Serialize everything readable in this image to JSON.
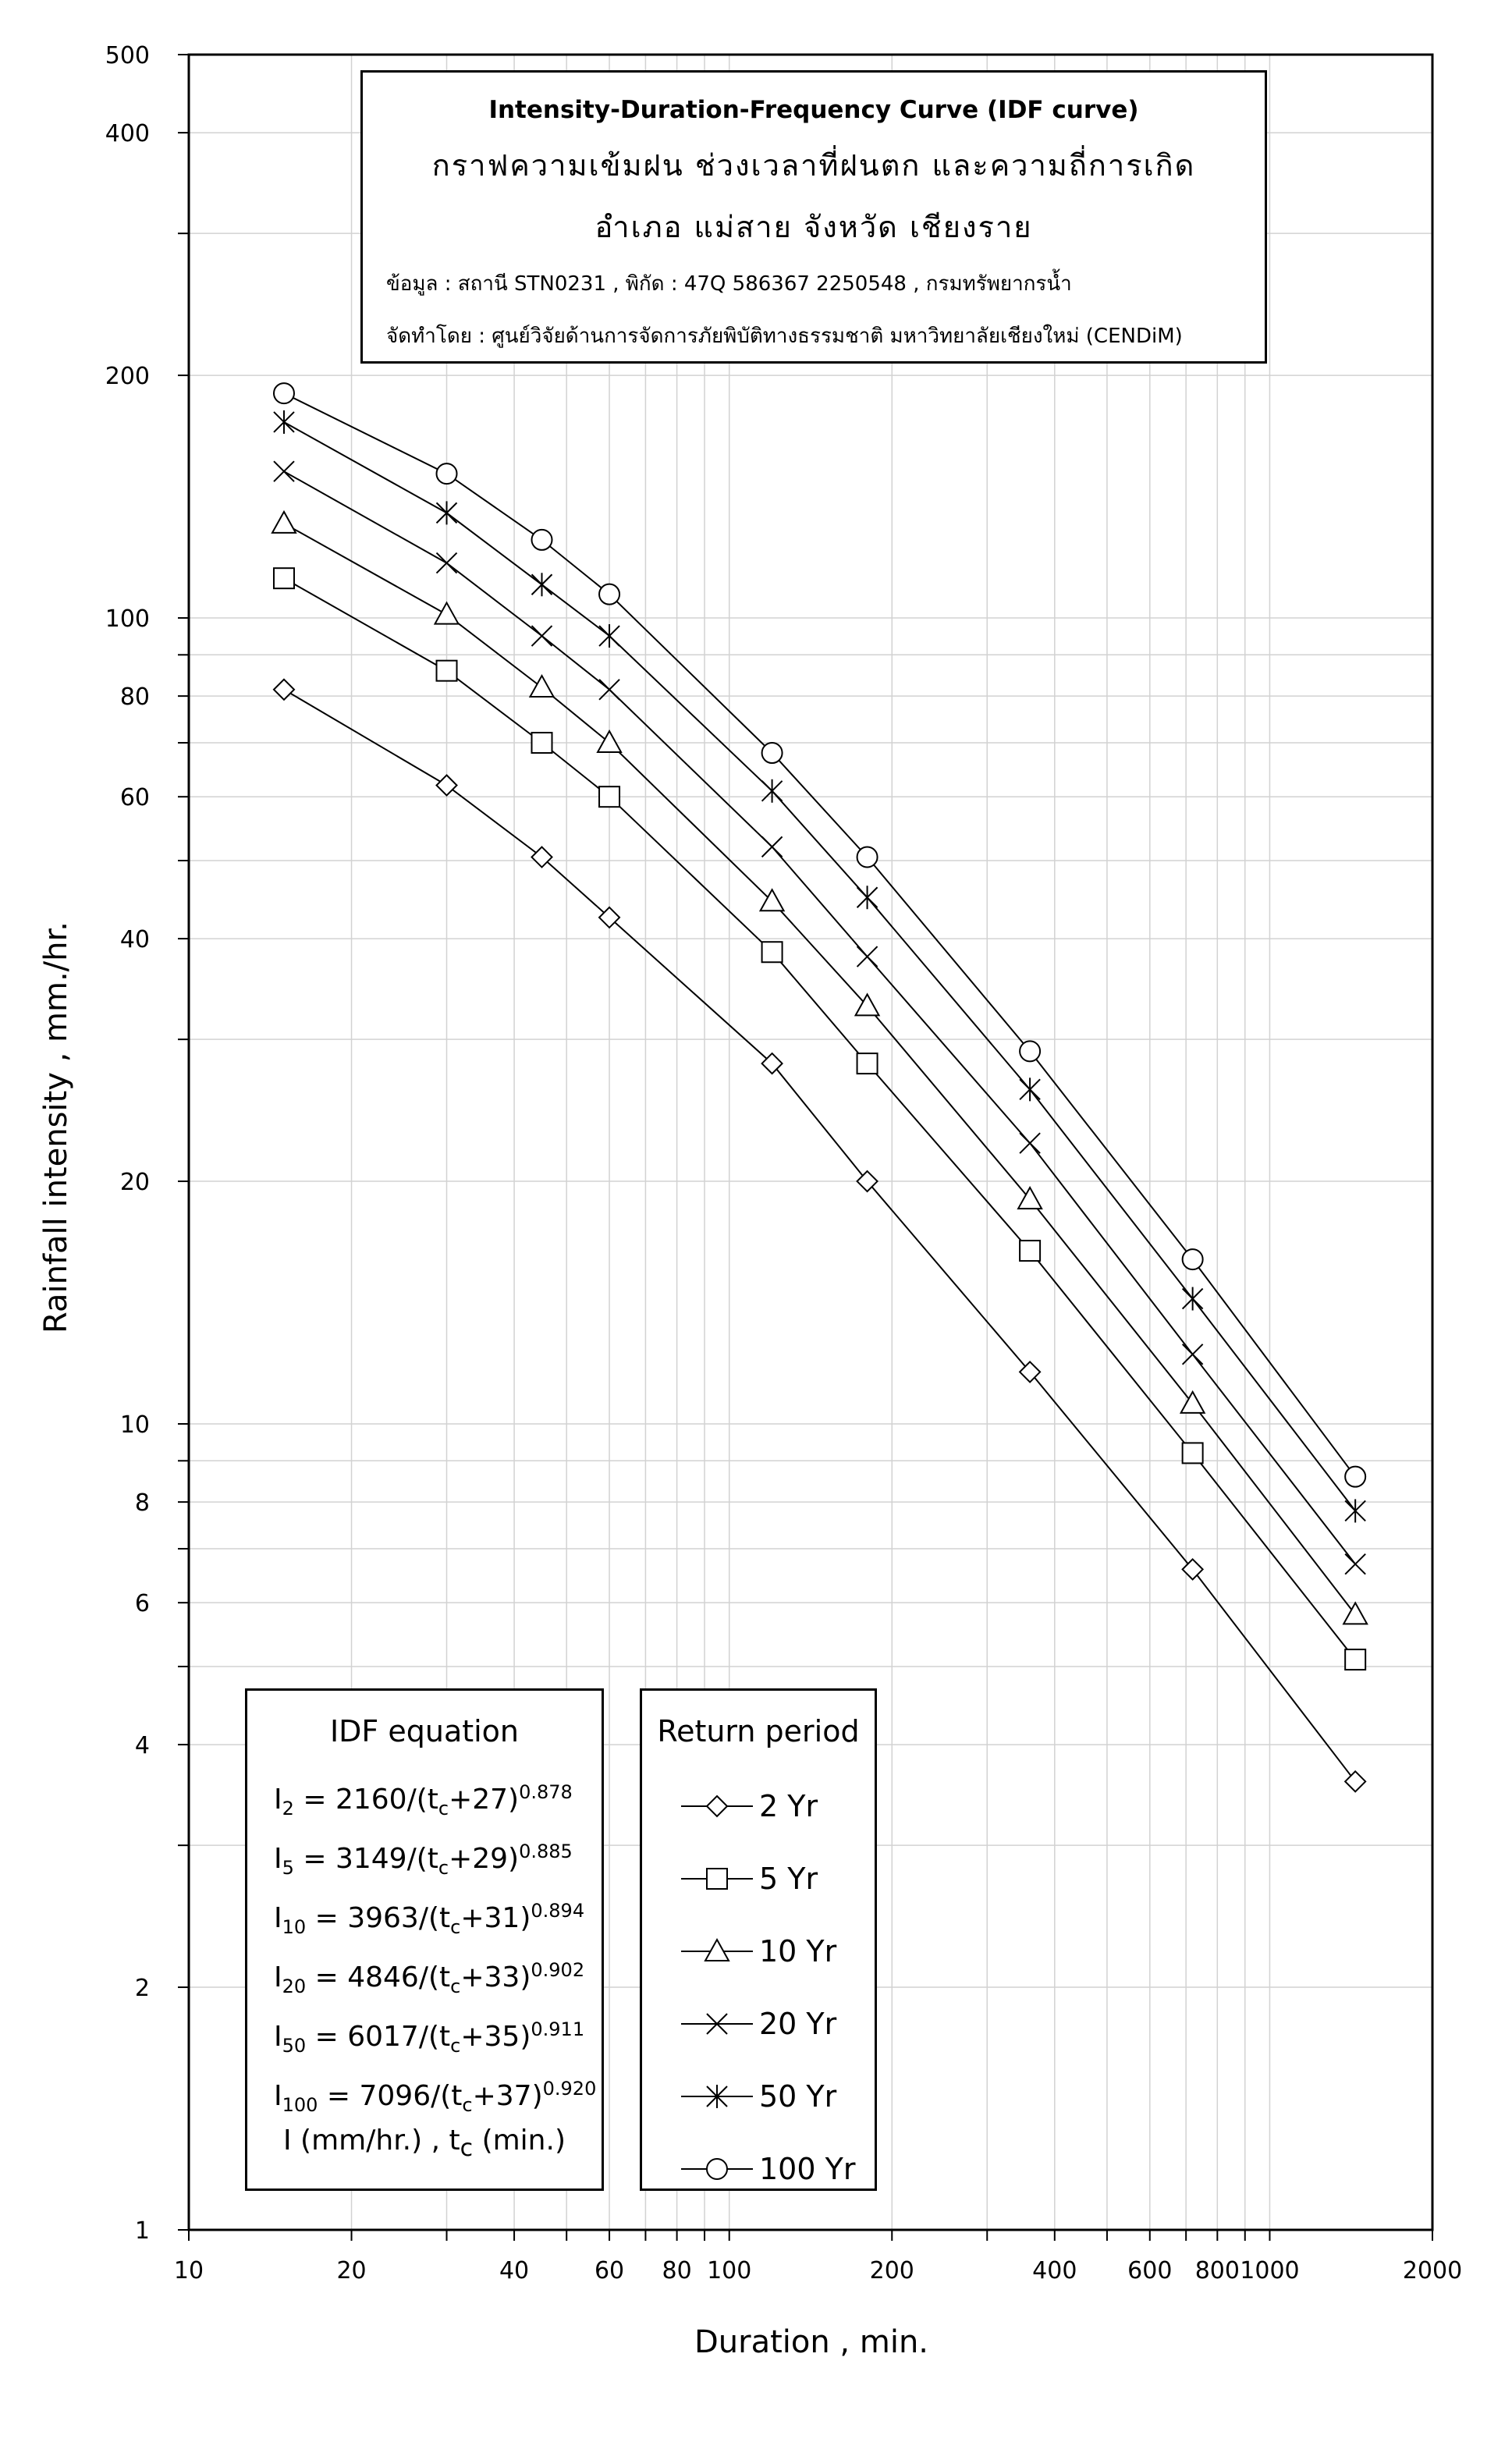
{
  "chart_data": {
    "type": "line",
    "title": "Intensity-Duration-Frequency Curve (IDF curve)",
    "subtitle_lines": [
      "กราฟความเข้มฝน ช่วงเวลาที่ฝนตก และความถี่การเกิด",
      "อำเภอ แม่สาย จังหวัด เชียงราย",
      "ข้อมูล : สถานี STN0231 , พิกัด : 47Q 586367 2250548 , กรมทรัพยากรน้ำ",
      "จัดทำโดย : ศูนย์วิจัยด้านการจัดการภัยพิบัติทางธรรมชาติ มหาวิทยาลัยเชียงใหม่ (CENDiM)"
    ],
    "xlabel": "Duration , min.",
    "ylabel": "Rainfall intensity , mm./hr.",
    "x_scale": "log",
    "y_scale": "log",
    "xlim": [
      10,
      2000
    ],
    "ylim": [
      1,
      500
    ],
    "grid": true,
    "x_tick_labels": [
      "10",
      "20",
      "40",
      "60",
      "80",
      "100",
      "200",
      "400",
      "600",
      "800",
      "1000",
      "2000"
    ],
    "y_tick_labels": [
      "1",
      "2",
      "4",
      "6",
      "8",
      "10",
      "20",
      "40",
      "60",
      "80",
      "100",
      "200",
      "400",
      "500"
    ],
    "x": [
      15,
      30,
      45,
      60,
      120,
      180,
      360,
      720,
      1440
    ],
    "series": [
      {
        "name": "2 Yr",
        "marker": "diamond",
        "values": [
          81.5,
          62,
          50.5,
          42.5,
          28,
          20,
          11.6,
          6.6,
          3.6
        ]
      },
      {
        "name": "5 Yr",
        "marker": "square",
        "values": [
          112,
          86,
          70,
          60,
          38.5,
          28,
          16.4,
          9.2,
          5.1
        ]
      },
      {
        "name": "10 Yr",
        "marker": "triangle",
        "values": [
          131,
          101,
          82,
          70,
          44.5,
          33,
          19,
          10.6,
          5.8
        ]
      },
      {
        "name": "20 Yr",
        "marker": "x",
        "values": [
          152,
          117,
          95,
          81.5,
          52,
          38,
          22.3,
          12.2,
          6.7
        ]
      },
      {
        "name": "50 Yr",
        "marker": "asterisk",
        "values": [
          175,
          135,
          110,
          95,
          61,
          45,
          26,
          14.3,
          7.8
        ]
      },
      {
        "name": "100 Yr",
        "marker": "circle",
        "values": [
          190,
          151,
          125,
          107,
          68,
          50.5,
          29,
          16,
          8.6
        ]
      }
    ],
    "legend_title": "Return period",
    "legend_position": "bottom-center"
  },
  "equation_box": {
    "title": "IDF equation",
    "lines": [
      {
        "sub": "2",
        "eq": " = 2160/(t",
        "exp": "0.878",
        "c": "+27)"
      },
      {
        "sub": "5",
        "eq": " = 3149/(t",
        "exp": "0.885",
        "c": "+29)"
      },
      {
        "sub": "10",
        "eq": " = 3963/(t",
        "exp": "0.894",
        "c": "+31)"
      },
      {
        "sub": "20",
        "eq": " = 4846/(t",
        "exp": "0.902",
        "c": "+33)"
      },
      {
        "sub": "50",
        "eq": " = 6017/(t",
        "exp": "0.911",
        "c": "+35)"
      },
      {
        "sub": "100",
        "eq": " = 7096/(t",
        "exp": "0.920",
        "c": "+37)"
      }
    ],
    "units_a": "I (mm/hr.) , t",
    "units_b": " (min.)"
  }
}
